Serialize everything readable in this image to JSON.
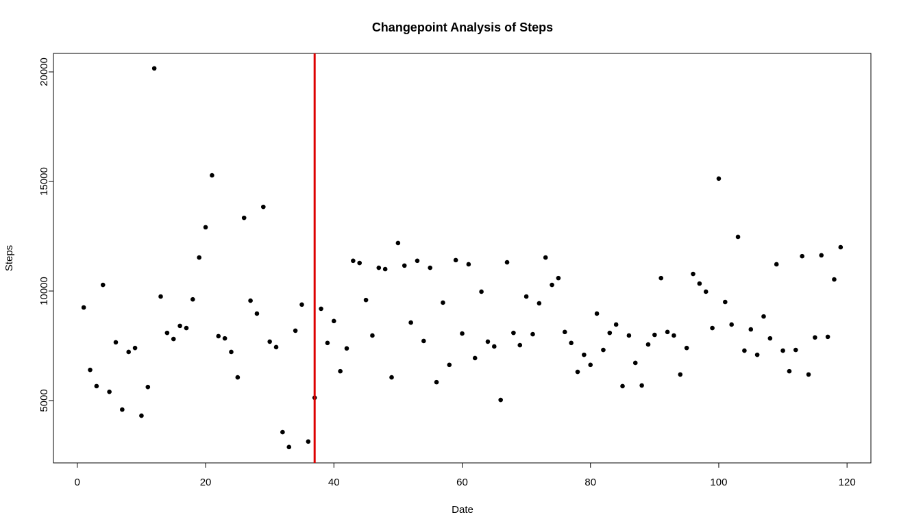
{
  "chart_data": {
    "type": "scatter",
    "title": "Changepoint Analysis of Steps",
    "x_label": "Date",
    "y_label": "Steps",
    "x": [
      1,
      2,
      3,
      4,
      5,
      6,
      7,
      8,
      9,
      10,
      11,
      12,
      13,
      14,
      15,
      16,
      17,
      18,
      19,
      20,
      21,
      22,
      23,
      24,
      25,
      26,
      27,
      28,
      29,
      30,
      31,
      32,
      33,
      34,
      35,
      36,
      37,
      38,
      39,
      40,
      41,
      42,
      43,
      44,
      45,
      46,
      47,
      48,
      49,
      50,
      51,
      52,
      53,
      54,
      55,
      56,
      57,
      58,
      59,
      60,
      61,
      62,
      63,
      64,
      65,
      66,
      67,
      68,
      69,
      70,
      71,
      72,
      73,
      74,
      75,
      76,
      77,
      78,
      79,
      80,
      81,
      82,
      83,
      84,
      85,
      86,
      87,
      88,
      89,
      90,
      91,
      92,
      93,
      94,
      95,
      96,
      97,
      98,
      99,
      100,
      101,
      102,
      103,
      104,
      105,
      106,
      107,
      108,
      109,
      110,
      111,
      112,
      113,
      114,
      115,
      116,
      117,
      118,
      119
    ],
    "values": [
      9250,
      6400,
      5660,
      10280,
      5400,
      7660,
      4590,
      7220,
      7400,
      4310,
      5620,
      20160,
      9750,
      8090,
      7810,
      8410,
      8310,
      9620,
      11530,
      12910,
      15280,
      7940,
      7840,
      7220,
      6060,
      13340,
      9560,
      8970,
      13840,
      7690,
      7440,
      3560,
      2880,
      8190,
      9380,
      3130,
      5130,
      9190,
      7630,
      8630,
      6340,
      7380,
      11380,
      11280,
      9590,
      7970,
      11060,
      11000,
      6060,
      12190,
      11160,
      8560,
      11380,
      7720,
      11060,
      5840,
      9470,
      6630,
      11410,
      8060,
      11220,
      6940,
      9970,
      7690,
      7470,
      5030,
      11310,
      8090,
      7530,
      9750,
      8030,
      9440,
      11530,
      10280,
      10590,
      8130,
      7630,
      6310,
      7090,
      6630,
      8970,
      7310,
      8090,
      8470,
      5660,
      7970,
      6720,
      5690,
      7560,
      8000,
      10590,
      8130,
      7970,
      6190,
      7400,
      10780,
      10340,
      9970,
      8310,
      15130,
      9500,
      8470,
      12470,
      7280,
      8250,
      7090,
      8840,
      7840,
      11220,
      7280,
      6340,
      7310,
      11590,
      6190,
      7880,
      11630,
      7910,
      10530,
      12000
    ],
    "color": "#000000",
    "changepoint": 37,
    "changepoint_color": "#dd0000",
    "xlim": [
      -3.72,
      123.72
    ],
    "xticks": [
      0,
      20,
      40,
      60,
      80,
      100,
      120
    ],
    "ylim": [
      2156,
      20844
    ],
    "yticks": [
      5000,
      10000,
      15000,
      20000
    ]
  }
}
